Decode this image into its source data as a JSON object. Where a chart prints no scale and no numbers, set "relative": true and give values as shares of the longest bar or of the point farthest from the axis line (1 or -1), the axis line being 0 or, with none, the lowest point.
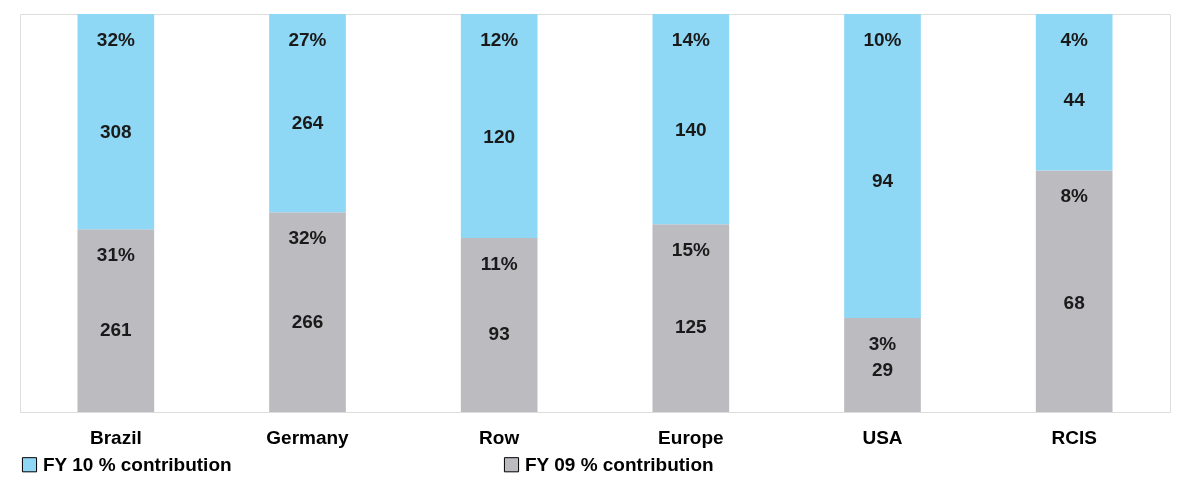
{
  "chart_data": {
    "type": "bar",
    "stacked": true,
    "relative": true,
    "legend": "bottom",
    "grid": false,
    "categories": [
      "Brazil",
      "Germany",
      "Row",
      "Europe",
      "USA",
      "RCIS"
    ],
    "series": [
      {
        "name": "FY 09 % contribution",
        "color": "#bcbcc0",
        "values": [
          0.459,
          0.502,
          0.437,
          0.472,
          0.236,
          0.607
        ]
      },
      {
        "name": "FY 10 % contribution",
        "color": "#8fd8f5",
        "values": [
          0.541,
          0.498,
          0.563,
          0.528,
          0.764,
          0.393
        ]
      }
    ],
    "annotations": [
      "31%",
      "261",
      "32%",
      "308",
      "32%",
      "266",
      "27%",
      "264",
      "11%",
      "93",
      "12%",
      "120",
      "15%",
      "125",
      "14%",
      "140",
      "3%",
      "29",
      "10%",
      "94",
      "8%",
      "68",
      "4%",
      "44"
    ]
  }
}
